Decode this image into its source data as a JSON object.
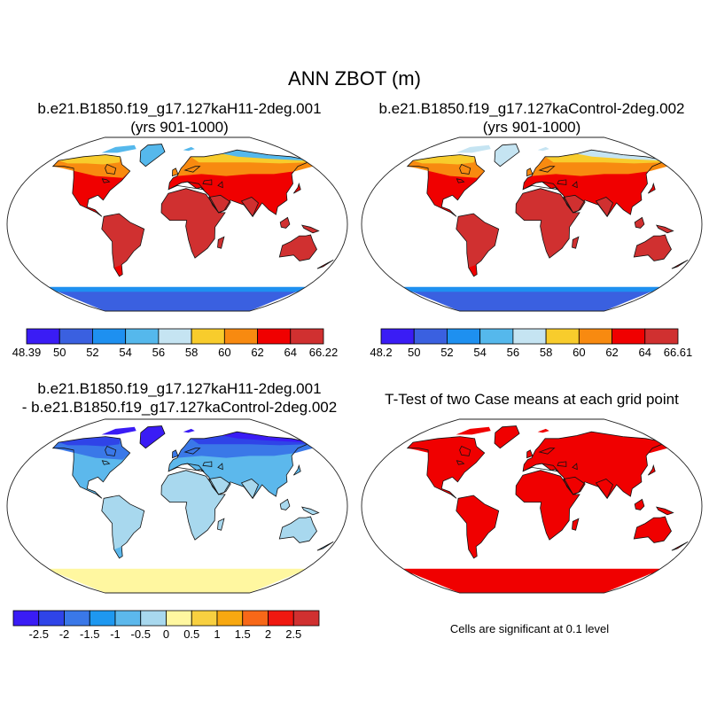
{
  "title": "ANN ZBOT (m)",
  "panels": [
    {
      "title_line1": "b.e21.B1850.f19_g17.127kaH11-2deg.001",
      "title_line2": "(yrs 901-1000)"
    },
    {
      "title_line1": "b.e21.B1850.f19_g17.127kaControl-2deg.002",
      "title_line2": "(yrs 901-1000)"
    },
    {
      "title_line1": "b.e21.B1850.f19_g17.127kaH11-2deg.001",
      "title_line2": "- b.e21.B1850.f19_g17.127kaControl-2deg.002"
    },
    {
      "title_line1": "T-Test of two Case means at each grid point"
    }
  ],
  "colorbars": [
    {
      "colors": [
        "#3a1cf5",
        "#3a60e0",
        "#1e90f0",
        "#55b8ec",
        "#c5e4f2",
        "#f8cc2c",
        "#f88a10",
        "#f00000",
        "#d03030"
      ],
      "labels": [
        "48.39",
        "50",
        "52",
        "54",
        "56",
        "58",
        "60",
        "62",
        "64",
        "66.22"
      ]
    },
    {
      "colors": [
        "#3a1cf5",
        "#3a60e0",
        "#1e90f0",
        "#55b8ec",
        "#c5e4f2",
        "#f8cc2c",
        "#f88a10",
        "#f00000",
        "#d03030"
      ],
      "labels": [
        "48.2",
        "50",
        "52",
        "54",
        "56",
        "58",
        "60",
        "62",
        "64",
        "66.61"
      ]
    },
    {
      "colors": [
        "#3a1cf5",
        "#2f44e8",
        "#3a78e8",
        "#1e98f0",
        "#5cb8ec",
        "#a8d8ee",
        "#fff7a0",
        "#f8d040",
        "#f8a810",
        "#f86818",
        "#f01810",
        "#d03030"
      ],
      "labels": [
        "-2.5",
        "-2",
        "-1.5",
        "-1",
        "-0.5",
        "0",
        "0.5",
        "1",
        "1.5",
        "2",
        "2.5"
      ]
    }
  ],
  "significance_note": "Cells are significant at 0.1 level",
  "map_colors": {
    "p1": {
      "tropics": "#d03030",
      "mid": "#f00000",
      "subarctic": "#f88a10",
      "arctic_land": "#f8cc2c",
      "high_arctic": "#55b8ec",
      "antarctica": "#3a60e0",
      "antarctic_rim": "#1e90f0"
    },
    "p2": {
      "tropics": "#d03030",
      "mid": "#f00000",
      "subarctic": "#f88a10",
      "arctic_land": "#f8cc2c",
      "high_arctic": "#c5e4f2",
      "antarctica": "#3a60e0",
      "antarctic_rim": "#1e90f0"
    },
    "p3": {
      "tropics": "#a8d8ee",
      "mid": "#5cb8ec",
      "subarctic": "#3a78e8",
      "arctic_land": "#2f44e8",
      "high_arctic": "#3a1cf5",
      "antarctica": "#fff7a0",
      "antarctic_rim": "#fff7a0"
    },
    "p4": {
      "tropics": "#f00000",
      "mid": "#f00000",
      "subarctic": "#f00000",
      "arctic_land": "#f00000",
      "high_arctic": "#f00000",
      "antarctica": "#f00000",
      "antarctic_rim": "#f00000"
    }
  }
}
